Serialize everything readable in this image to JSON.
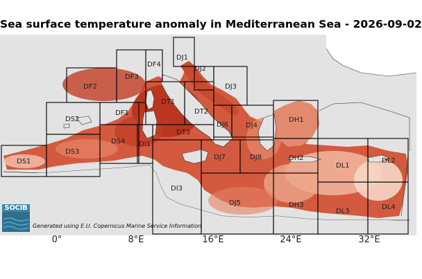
{
  "title": "Sea surface temperature anomaly in Mediterranean Sea - 2026-09-02",
  "logo": {
    "text": "SOCIB"
  },
  "credit": "Generated using E.U. Copernicus Marine Service Information",
  "x_ticks": [
    "0°",
    "8°E",
    "16°E",
    "24°E",
    "32°E"
  ],
  "regions": [
    "DS1",
    "DS2",
    "DS3",
    "DS4",
    "DF1",
    "DF2",
    "DF3",
    "DF4",
    "DT1",
    "DT2",
    "DT3",
    "DJ1",
    "DJ2",
    "DJ3",
    "DJ4",
    "DJ5",
    "DJ6",
    "DJ7",
    "DJ8",
    "DI1",
    "DI3",
    "DH1",
    "DH2",
    "DH3",
    "DL1",
    "DL2",
    "DL3",
    "DL4"
  ],
  "colors": {
    "land": "#e3e3e3",
    "sea_hot": "#b9321f",
    "sea_warm": "#e0745a",
    "sea_mild": "#f2b39b",
    "sea_cool": "#f7ddd0",
    "region_border": "#000000",
    "logo_bg": "#3c87a7"
  }
}
